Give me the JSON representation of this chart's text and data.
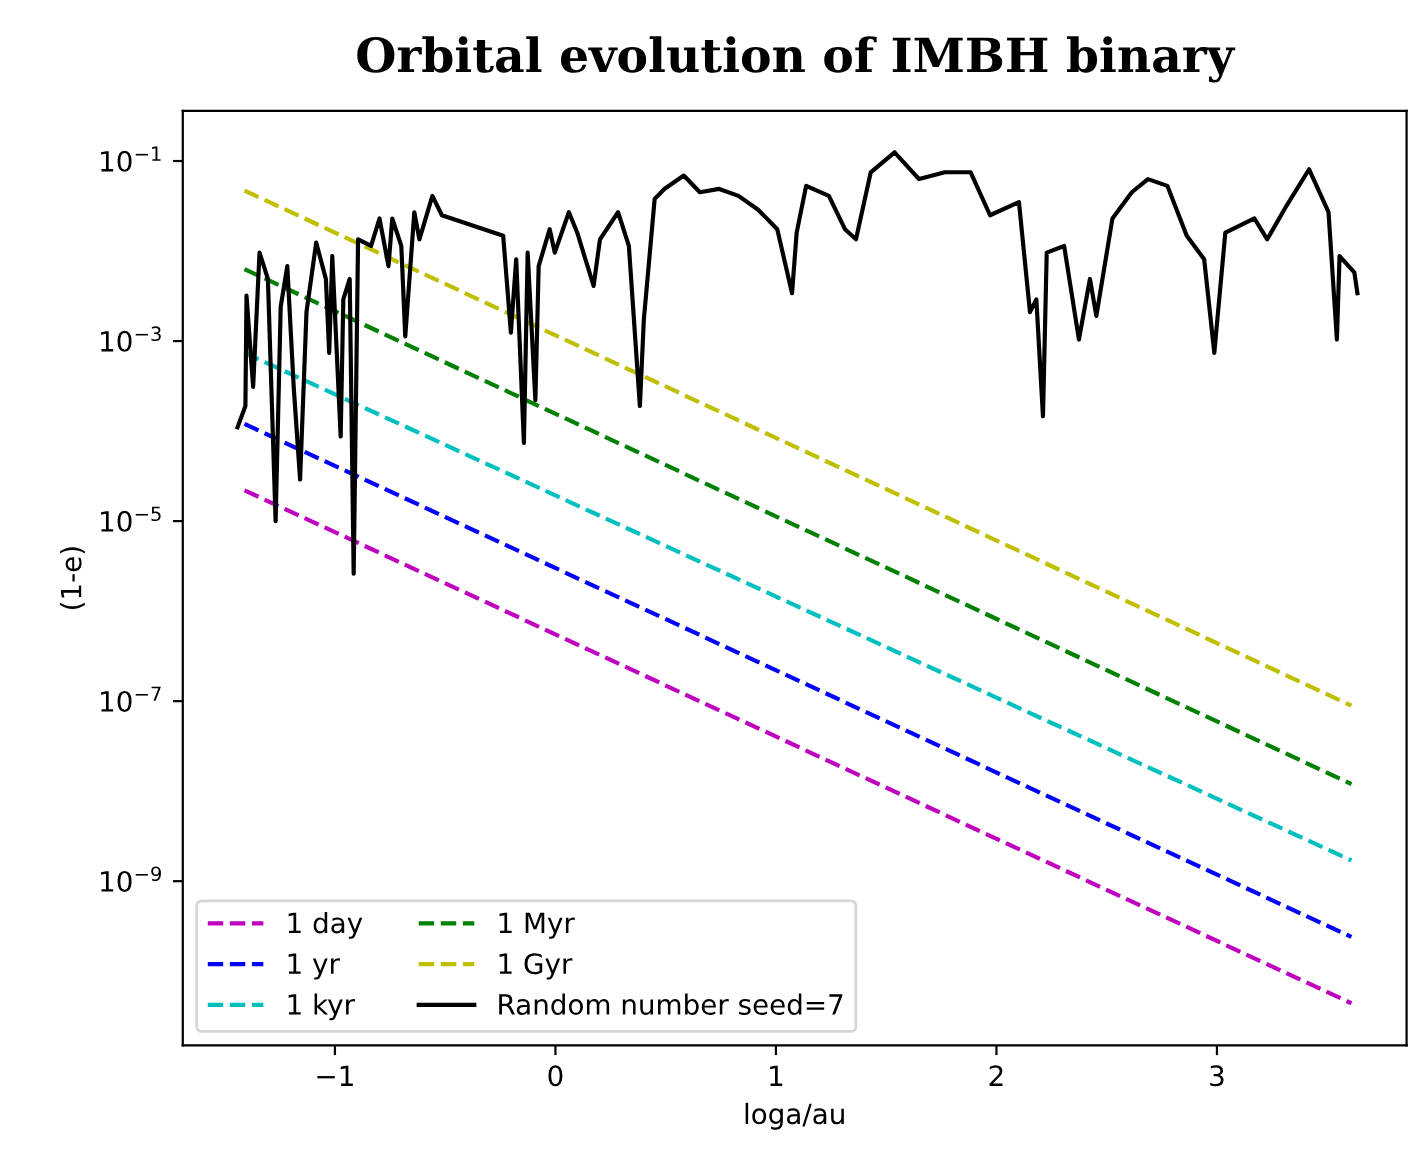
{
  "chart_data": {
    "type": "line",
    "title": "Orbital evolution of IMBH binary",
    "xlabel": "loga/au",
    "ylabel": "(1-e)",
    "log": "y",
    "xlim": [
      -1.69,
      3.86
    ],
    "xticks": [
      {
        "value": -1,
        "label": "−1"
      },
      0,
      1,
      2,
      3
    ],
    "ylim": [
      1.5e-11,
      0.36
    ],
    "yticks": [
      {
        "value": 1e-09,
        "label": "10$^{−9}$"
      },
      {
        "value": 1e-07,
        "label": "10$^{−7}$"
      },
      {
        "value": 1e-05,
        "label": "10$^{−5}$"
      },
      {
        "value": 0.001,
        "label": "10$^{−3}$"
      },
      {
        "value": 0.1,
        "label": "10$^{−1}$"
      }
    ],
    "grid": false,
    "legend": "bottom left",
    "series": [
      {
        "name": "1 day",
        "color": "#bf00bf",
        "line_style": "dashed",
        "x": [
          -1.41,
          3.61
        ],
        "values": [
          2.2e-05,
          4.4e-11
        ]
      },
      {
        "name": "1 yr",
        "color": "#0000ff",
        "line_style": "dashed",
        "x": [
          -1.41,
          3.61
        ],
        "values": [
          0.00012,
          2.4e-10
        ]
      },
      {
        "name": "1 kyr",
        "color": "#00bfbf",
        "line_style": "dashed",
        "x": [
          -1.41,
          3.61
        ],
        "values": [
          0.00074,
          1.7e-09
        ]
      },
      {
        "name": "1 Myr",
        "color": "#008000",
        "line_style": "dashed",
        "x": [
          -1.41,
          3.61
        ],
        "values": [
          0.0063,
          1.2e-08
        ]
      },
      {
        "name": "1 Gyr",
        "color": "#bfbf00",
        "line_style": "dashed",
        "x": [
          -1.41,
          3.61
        ],
        "values": [
          0.047,
          8.9e-08
        ]
      },
      {
        "name": "Random number seed=7",
        "color": "#000000",
        "line_style": "solid",
        "x": [
          -1.442,
          -1.406,
          -1.401,
          -1.371,
          -1.342,
          -1.304,
          -1.269,
          -1.246,
          -1.216,
          -1.187,
          -1.158,
          -1.129,
          -1.085,
          -1.041,
          -1.026,
          -1.012,
          -0.974,
          -0.962,
          -0.933,
          -0.915,
          -0.895,
          -0.836,
          -0.798,
          -0.757,
          -0.74,
          -0.699,
          -0.681,
          -0.64,
          -0.617,
          -0.558,
          -0.515,
          -0.237,
          -0.202,
          -0.178,
          -0.143,
          -0.126,
          -0.091,
          -0.076,
          -0.026,
          -0.003,
          0.061,
          0.099,
          0.173,
          0.202,
          0.284,
          0.333,
          0.383,
          0.401,
          0.45,
          0.494,
          0.582,
          0.655,
          0.743,
          0.83,
          0.918,
          1.006,
          1.073,
          1.094,
          1.137,
          1.24,
          1.313,
          1.363,
          1.43,
          1.538,
          1.649,
          1.766,
          1.883,
          1.971,
          2.102,
          2.152,
          2.181,
          2.211,
          2.228,
          2.307,
          2.374,
          2.424,
          2.453,
          2.526,
          2.614,
          2.687,
          2.775,
          2.863,
          2.942,
          2.988,
          3.038,
          3.17,
          3.228,
          3.316,
          3.418,
          3.506,
          3.544,
          3.556,
          3.623,
          3.637
        ],
        "values": [
          0.00011,
          0.00019,
          0.0032,
          0.00031,
          0.0096,
          0.0049,
          1e-05,
          0.0024,
          0.0068,
          0.00031,
          2.9e-05,
          0.0021,
          0.0124,
          0.0049,
          0.00074,
          0.0088,
          8.7e-05,
          0.0029,
          0.0049,
          2.6e-06,
          0.0135,
          0.0114,
          0.023,
          0.0068,
          0.023,
          0.0114,
          0.00113,
          0.027,
          0.0135,
          0.041,
          0.025,
          0.0148,
          0.00124,
          0.0081,
          7.4e-05,
          0.0096,
          0.00022,
          0.0068,
          0.0175,
          0.0096,
          0.027,
          0.016,
          0.0041,
          0.0135,
          0.027,
          0.0114,
          0.00019,
          0.00174,
          0.038,
          0.049,
          0.069,
          0.045,
          0.049,
          0.041,
          0.029,
          0.0175,
          0.0034,
          0.016,
          0.053,
          0.041,
          0.0175,
          0.0135,
          0.075,
          0.125,
          0.063,
          0.075,
          0.075,
          0.025,
          0.035,
          0.0021,
          0.0029,
          0.000146,
          0.0096,
          0.0114,
          0.00104,
          0.0049,
          0.0019,
          0.023,
          0.045,
          0.063,
          0.053,
          0.0148,
          0.0081,
          0.00074,
          0.016,
          0.023,
          0.0135,
          0.032,
          0.081,
          0.027,
          0.00104,
          0.0088,
          0.0058,
          0.0034
        ]
      }
    ]
  }
}
